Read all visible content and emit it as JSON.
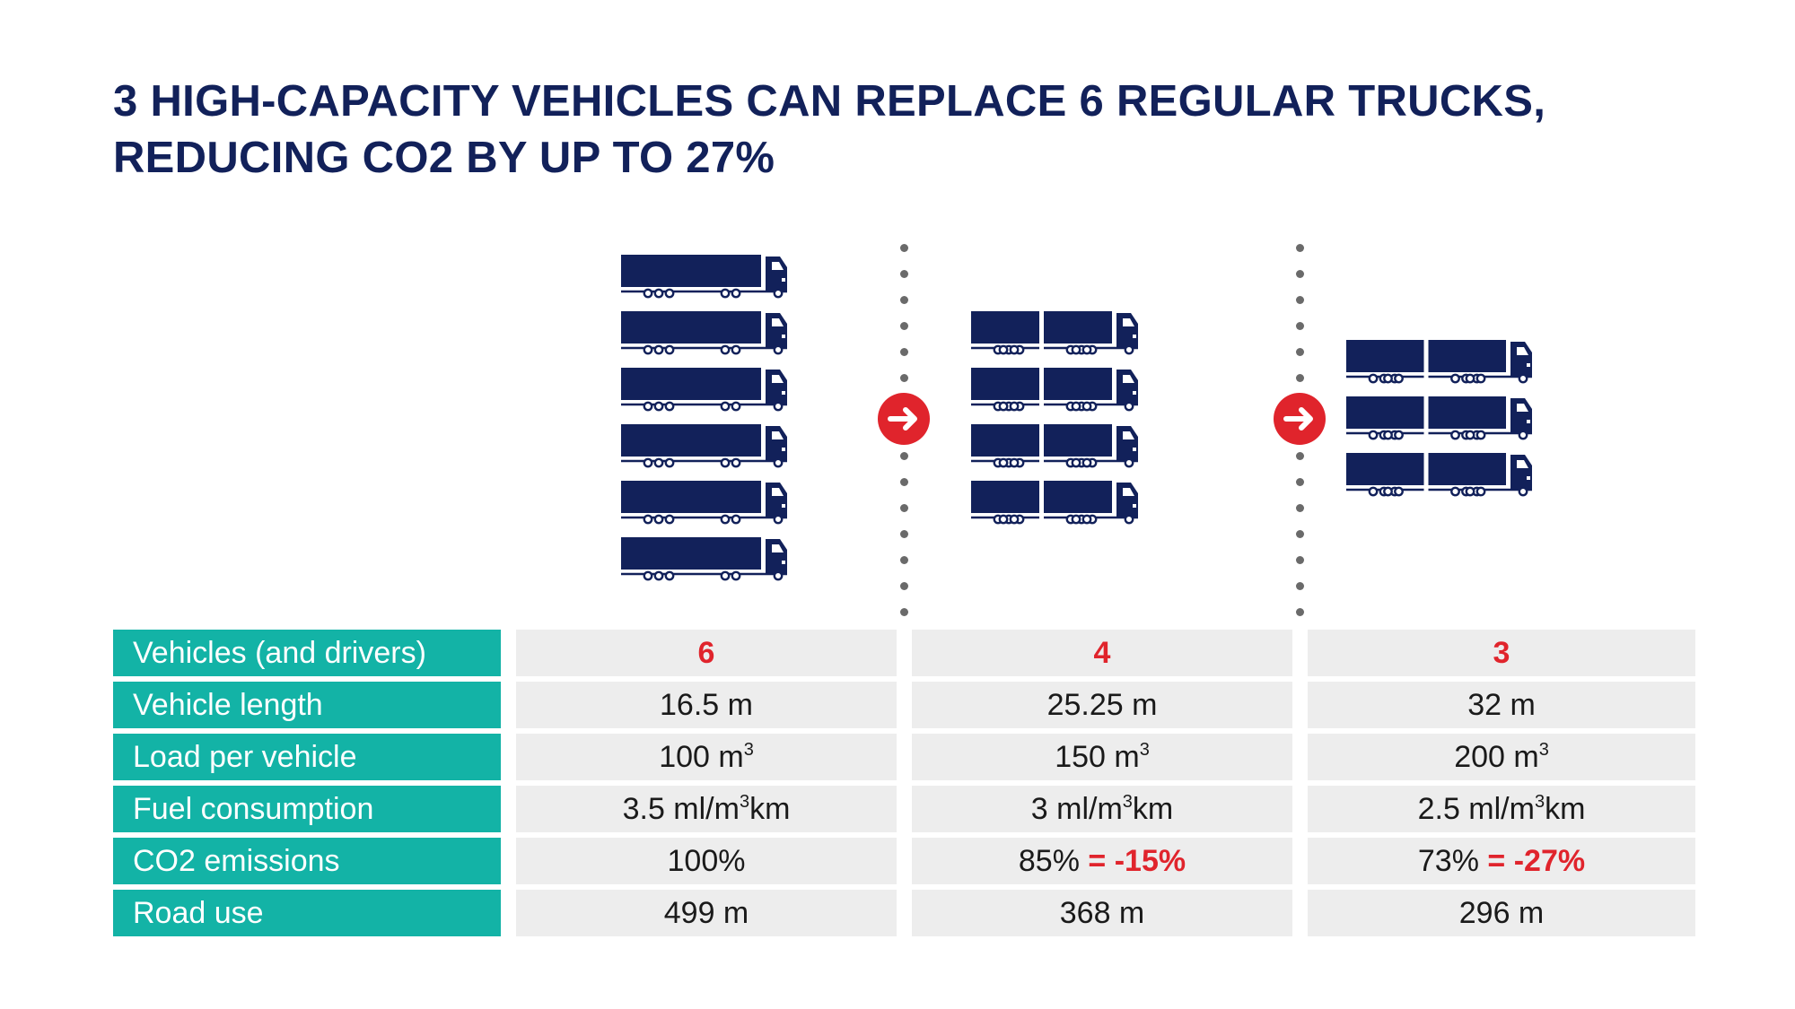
{
  "title": {
    "line1": "3 HIGH-CAPACITY VEHICLES CAN REPLACE 6 REGULAR TRUCKS,",
    "line2": "REDUCING CO2 BY UP TO 27%"
  },
  "fleets": [
    {
      "vehicle_count": 6,
      "trailers_per_vehicle": 1
    },
    {
      "vehicle_count": 4,
      "trailers_per_vehicle": 2
    },
    {
      "vehicle_count": 3,
      "trailers_per_vehicle": 2
    }
  ],
  "icons": {
    "truck": "truck-icon",
    "arrow": "arrow-right-icon"
  },
  "colors": {
    "navy": "#12215a",
    "teal": "#13b3a6",
    "red": "#e0242c",
    "cell_grey": "#ededed"
  },
  "table": {
    "rows": [
      {
        "label": "Vehicles (and drivers)",
        "col1": "6",
        "col2": "4",
        "col3": "3"
      },
      {
        "label": "Vehicle length",
        "col1": "16.5 m",
        "col2": "25.25 m",
        "col3": "32 m"
      },
      {
        "label": "Load per vehicle",
        "col1": {
          "pre": "100 m",
          "sup": "3"
        },
        "col2": {
          "pre": "150 m",
          "sup": "3"
        },
        "col3": {
          "pre": "200 m",
          "sup": "3"
        }
      },
      {
        "label": "Fuel consumption",
        "col1": {
          "pre": "3.5 ml/m",
          "sup": "3",
          "post": "km"
        },
        "col2": {
          "pre": "3 ml/m",
          "sup": "3",
          "post": "km"
        },
        "col3": {
          "pre": "2.5 ml/m",
          "sup": "3",
          "post": "km"
        }
      },
      {
        "label": "CO2 emissions",
        "col1": "100%",
        "col2": {
          "value": "85%",
          "delta": "= -15%"
        },
        "col3": {
          "value": "73%",
          "delta": "= -27%"
        }
      },
      {
        "label": "Road use",
        "col1": "499 m",
        "col2": "368 m",
        "col3": "296 m"
      }
    ]
  }
}
